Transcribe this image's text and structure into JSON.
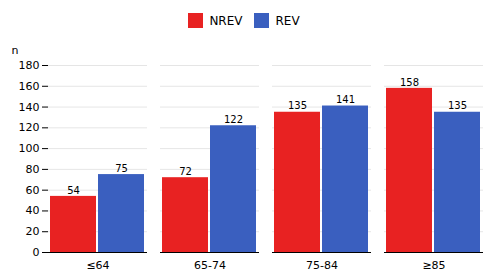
{
  "chart_data": {
    "type": "bar",
    "categories": [
      "≤64",
      "65-74",
      "75-84",
      "≥85"
    ],
    "series": [
      {
        "name": "NREV",
        "color": "#E82222",
        "values": [
          54,
          72,
          135,
          158
        ]
      },
      {
        "name": "REV",
        "color": "#3A5FBF",
        "values": [
          75,
          122,
          141,
          135
        ]
      }
    ],
    "ylabel": "n",
    "ylim": [
      0,
      180
    ],
    "yticks": [
      0,
      20,
      40,
      60,
      80,
      100,
      120,
      140,
      160,
      180
    ],
    "grid": true,
    "legend": "top",
    "data_labels": true
  }
}
